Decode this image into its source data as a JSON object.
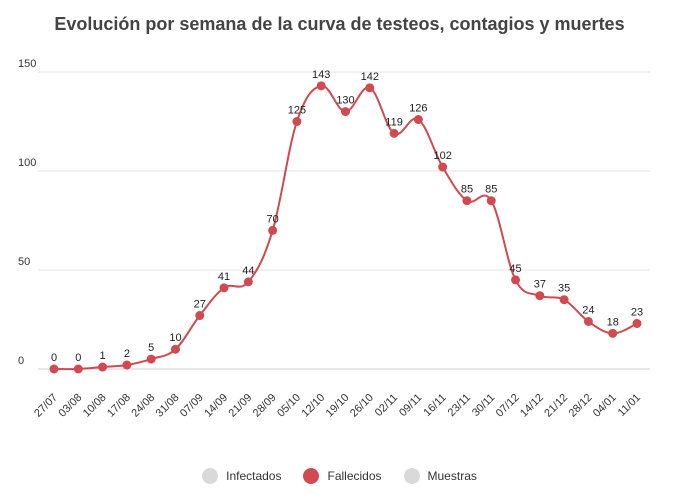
{
  "chart_data": {
    "type": "line",
    "title": "Evolución por semana de la curva de testeos, contagios y muertes",
    "xlabel": "",
    "ylabel": "",
    "ylim": [
      0,
      150
    ],
    "yticks": [
      0,
      50,
      100,
      150
    ],
    "grid": true,
    "legend_position": "bottom",
    "categories": [
      "27/07",
      "03/08",
      "10/08",
      "17/08",
      "24/08",
      "31/08",
      "07/09",
      "14/09",
      "21/09",
      "28/09",
      "05/10",
      "12/10",
      "19/10",
      "26/10",
      "02/11",
      "09/11",
      "16/11",
      "23/11",
      "30/11",
      "07/12",
      "14/12",
      "21/12",
      "28/12",
      "04/01",
      "11/01"
    ],
    "series": [
      {
        "name": "Fallecidos",
        "values": [
          0,
          0,
          1,
          2,
          5,
          10,
          27,
          41,
          44,
          70,
          125,
          143,
          130,
          142,
          119,
          126,
          102,
          85,
          85,
          45,
          37,
          35,
          24,
          18,
          23
        ],
        "color": "#d04a4f",
        "visible": true
      }
    ],
    "legend": [
      {
        "name": "Infectados",
        "color": "#d9d9d9"
      },
      {
        "name": "Fallecidos",
        "color": "#d04a4f"
      },
      {
        "name": "Muestras",
        "color": "#d9d9d9"
      }
    ]
  }
}
